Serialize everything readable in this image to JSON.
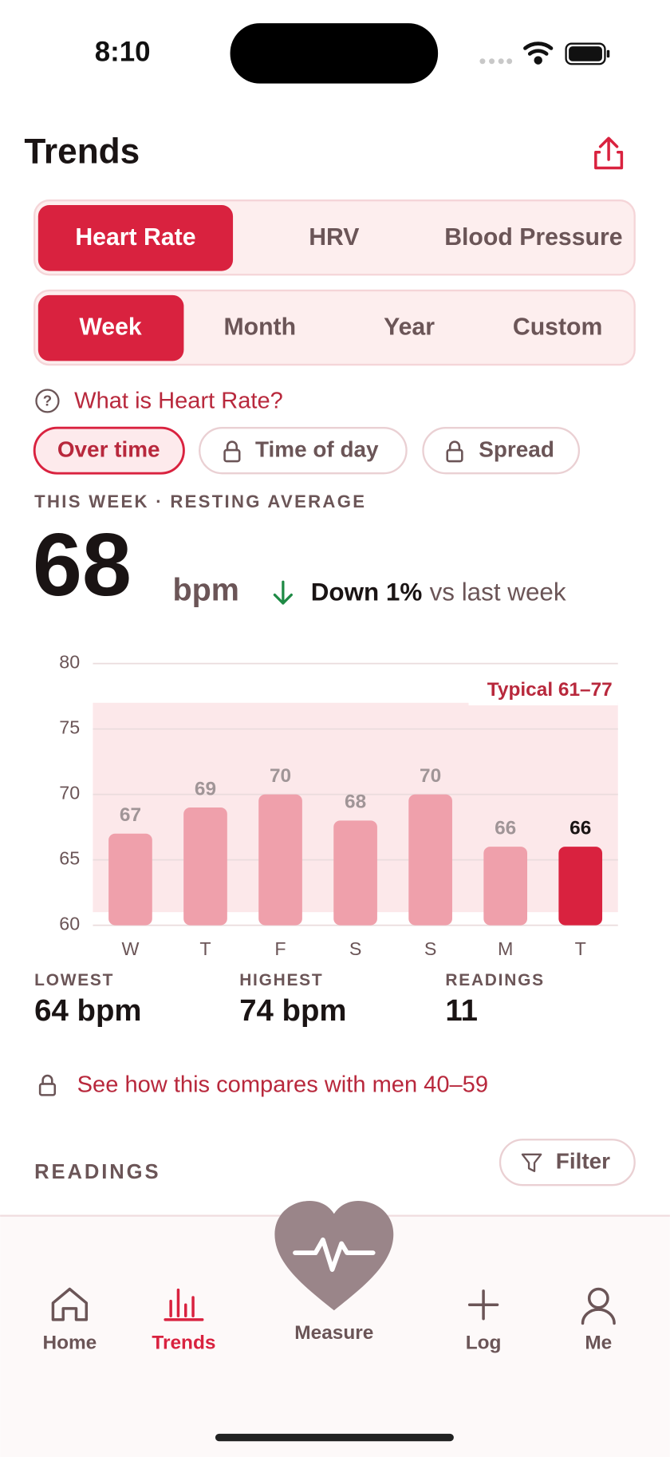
{
  "status": {
    "time": "8:10"
  },
  "header": {
    "title": "Trends"
  },
  "metric_tabs": [
    "Heart Rate",
    "HRV",
    "Blood Pressure"
  ],
  "period_tabs": [
    "Week",
    "Month",
    "Year",
    "Custom"
  ],
  "help_link": "What is Heart Rate?",
  "view_chips": [
    "Over time",
    "Time of day",
    "Spread"
  ],
  "summary": {
    "label": "THIS WEEK · RESTING AVERAGE",
    "value": 68,
    "unit": "bpm",
    "change": "Down 1%",
    "change_text": "vs last week"
  },
  "chart_data": {
    "type": "bar",
    "categories": [
      "W",
      "T",
      "F",
      "S",
      "S",
      "M",
      "T"
    ],
    "values": [
      67,
      69,
      70,
      68,
      70,
      66,
      66
    ],
    "color": "#efa0ab",
    "highlight_color": "#d9223f",
    "highlight_index": 6,
    "ylim": [
      60,
      80
    ],
    "yticks": [
      60,
      65,
      70,
      75,
      80
    ],
    "grid": true,
    "typical_range": [
      61,
      77
    ],
    "typical_label": "Typical 61–77"
  },
  "stats": [
    {
      "label": "LOWEST",
      "value": "64 bpm"
    },
    {
      "label": "HIGHEST",
      "value": "74 bpm"
    },
    {
      "label": "READINGS",
      "value": "11"
    }
  ],
  "compare_link": "See how this compares with men 40–59",
  "readings": {
    "title": "READINGS",
    "filter": "Filter"
  },
  "tabbar": [
    "Home",
    "Trends",
    "Measure",
    "Log",
    "Me"
  ]
}
